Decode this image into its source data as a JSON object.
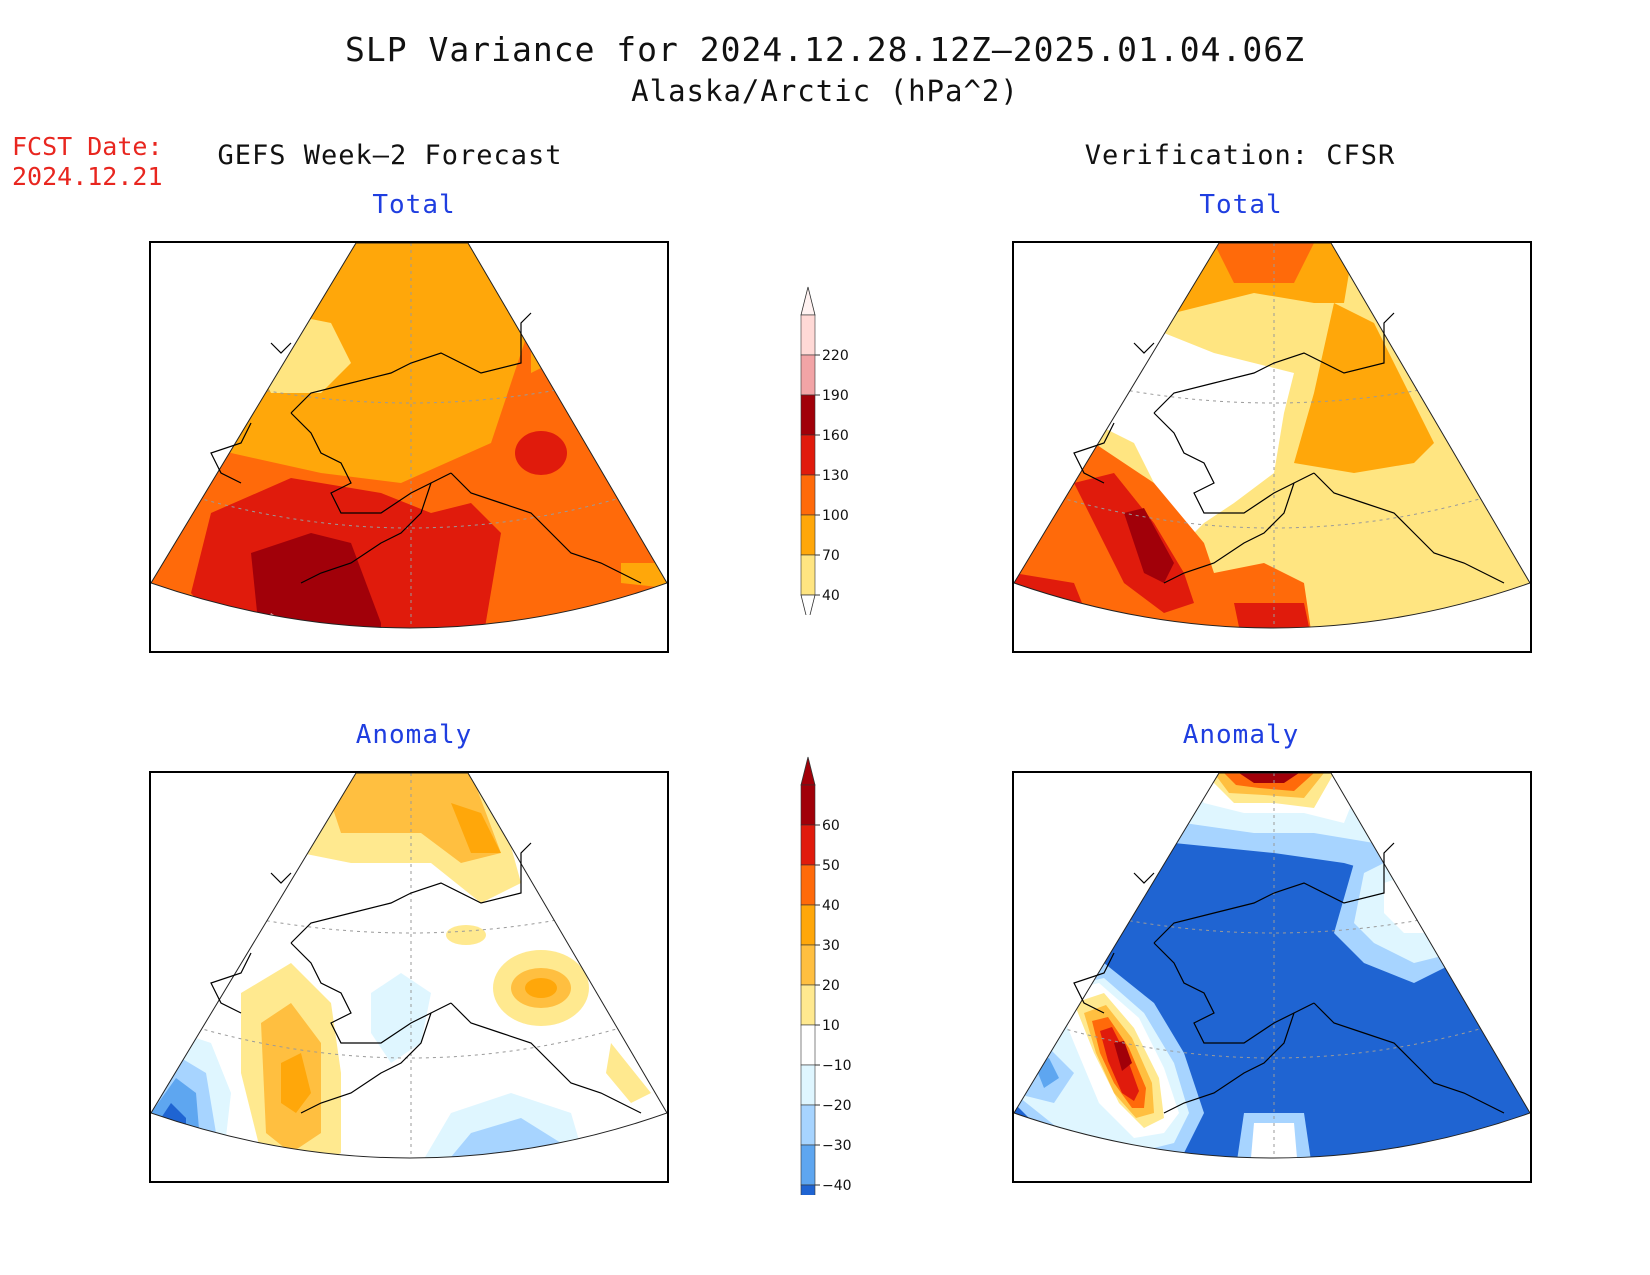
{
  "header": {
    "title": "SLP Variance for 2024.12.28.12Z–2025.01.04.06Z",
    "subtitle": "Alaska/Arctic (hPa^2)",
    "fcst_label": "FCST Date:",
    "fcst_date": "2024.12.21"
  },
  "columns": {
    "left": "GEFS Week–2 Forecast",
    "right": "Verification: CFSR"
  },
  "panels": {
    "forecast_total": "Total",
    "verif_total": "Total",
    "forecast_anomaly": "Anomaly",
    "verif_anomaly": "Anomaly"
  },
  "colorbars": {
    "total": {
      "levels": [
        "220",
        "190",
        "160",
        "130",
        "100",
        "70",
        "40"
      ],
      "colors": [
        "#ffd9d6",
        "#f2a4a6",
        "#a10009",
        "#e01b0c",
        "#ff6a0a",
        "#ffa70a",
        "#ffe581"
      ]
    },
    "anomaly": {
      "levels": [
        "60",
        "50",
        "40",
        "30",
        "20",
        "10",
        "−10",
        "−20",
        "−30",
        "−40"
      ],
      "colors": [
        "#a10009",
        "#e01b0c",
        "#ff6a0a",
        "#ffa70a",
        "#ffbf40",
        "#ffe98f",
        "#ffffff",
        "#dff6ff",
        "#a7d4ff",
        "#5ea6f0",
        "#1f64d2"
      ]
    }
  },
  "colors": {
    "title_text": "#111111",
    "fcst_text": "#e8261f",
    "panel_title_text": "#1f3ee0"
  }
}
